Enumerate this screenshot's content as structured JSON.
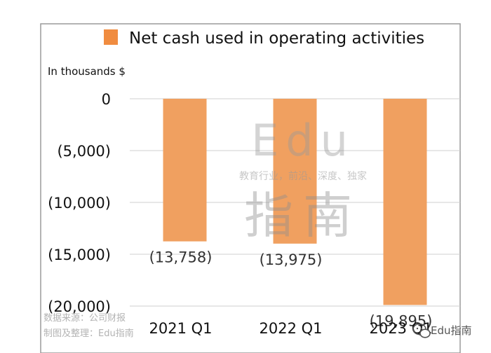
{
  "chart_data": {
    "type": "bar",
    "categories": [
      "2021 Q1",
      "2022 Q1",
      "2023 Q1"
    ],
    "series": [
      {
        "name": "Net cash used in operating activities",
        "values": [
          -13758,
          -13975,
          -19895
        ]
      }
    ],
    "data_labels": [
      "(13,758)",
      "(13,975)",
      "(19,895)"
    ],
    "ylabel": "In thousands $",
    "ylim": [
      -20000,
      0
    ],
    "yticks": [
      0,
      -5000,
      -10000,
      -15000,
      -20000
    ],
    "ytick_labels": [
      "0",
      "(5,000)",
      "(10,000)",
      "(15,000)",
      "(20,000)"
    ],
    "legend_position": "top",
    "grid": true,
    "colors": {
      "bar": "#F0A060",
      "legend_swatch": "#F08C40",
      "grid": "#cfcfcf",
      "frame": "#9a9a9a"
    }
  },
  "watermark": {
    "latin": "Edu",
    "tagline": "教育行业，前沿、深度、独家",
    "chinese": "指南"
  },
  "source_note": {
    "line1": "数据来源：公司财报",
    "line2": "制图及整理：Edu指南"
  },
  "brand": {
    "icon": "wechat-icon",
    "name": "Edu指南"
  }
}
